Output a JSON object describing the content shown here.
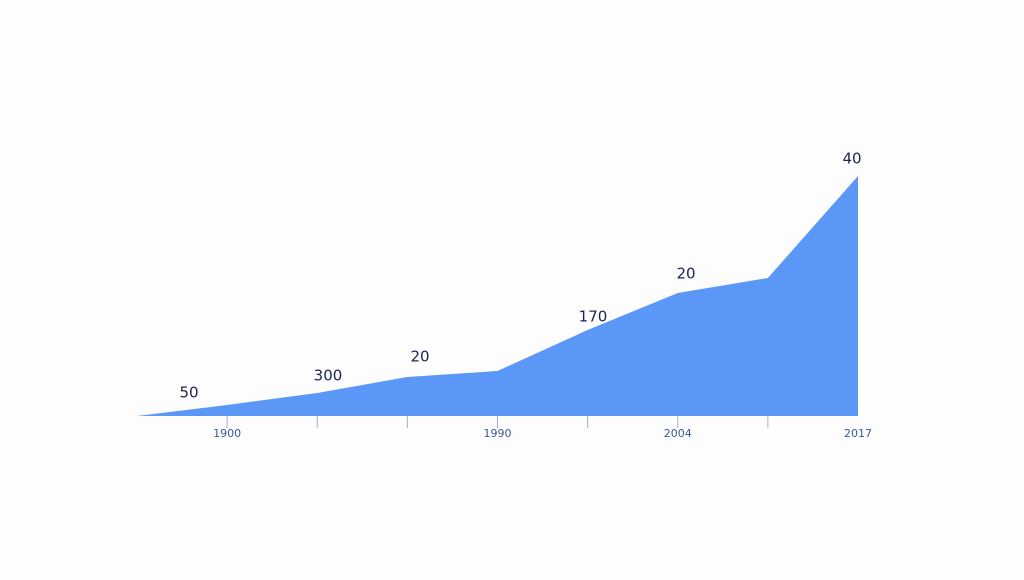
{
  "chart_data": {
    "type": "area",
    "categories": [
      null,
      "1900",
      null,
      null,
      "1990",
      null,
      "2004",
      null,
      "2017"
    ],
    "values": [
      0,
      11,
      23,
      39,
      45,
      86,
      123,
      138,
      240
    ],
    "color": "#5b97f7",
    "ylim": [
      0,
      250
    ],
    "annotations": [
      "50",
      "300",
      "20",
      "170",
      "20",
      "40"
    ]
  }
}
